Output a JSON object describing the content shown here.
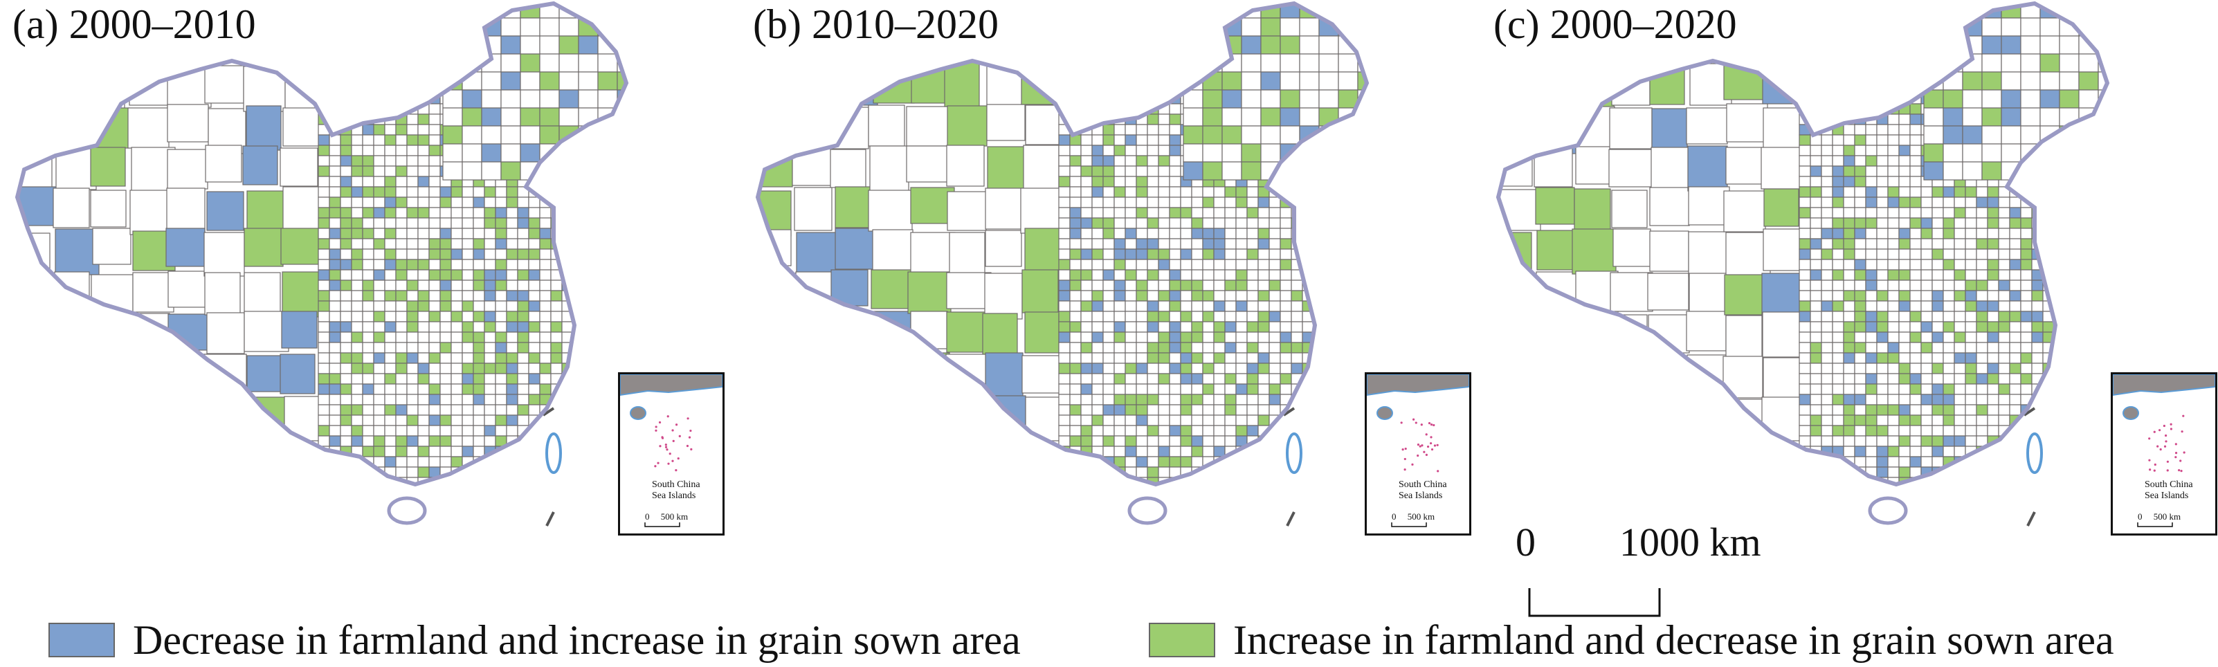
{
  "panels": [
    {
      "title": "(a) 2000–2010"
    },
    {
      "title": "(b) 2010–2020"
    },
    {
      "title": "(c) 2000–2020"
    }
  ],
  "inset": {
    "label_line1": "South China",
    "label_line2": "Sea Islands",
    "scale_zero": "0",
    "scale_value": "500 km"
  },
  "scale_bar": {
    "zero": "0",
    "value": "1000 km"
  },
  "legend": [
    {
      "label": "Decrease in farmland and increase in grain sown area",
      "color": "#7ea0cf"
    },
    {
      "label": "Increase in farmland and decrease in grain sown area",
      "color": "#9ccd6f"
    }
  ],
  "colors": {
    "blue": "#7ea0cf",
    "green": "#9ccd6f",
    "outline": "#9a9ac4",
    "coast": "#5b9bd5",
    "border": "#6f6a6a"
  }
}
